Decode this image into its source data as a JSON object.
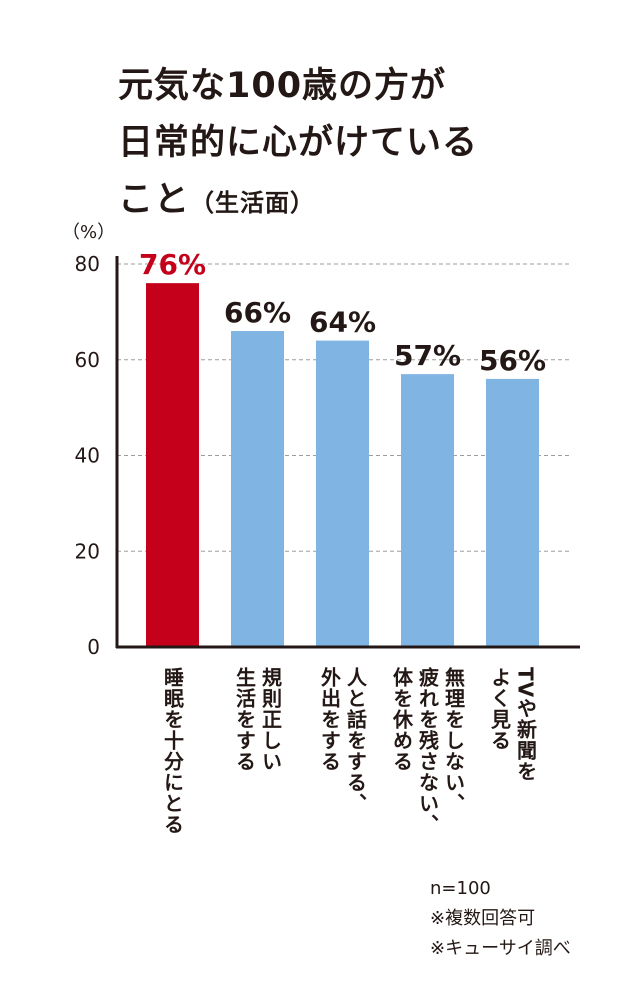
{
  "title": {
    "line1": "元気な100歳の方が",
    "line2": "日常的に心がけている",
    "line3": "こと",
    "sub": "（生活面）"
  },
  "colors": {
    "highlight": "#c4001a",
    "bar": "#7fb4e3",
    "text": "#231815",
    "axis": "#231815",
    "grid": "#9e9e9e"
  },
  "chart_data": {
    "type": "bar",
    "unit": "（%）",
    "categories": [
      "睡眠を十分にとる",
      "規則正しい生活をする",
      "人と話をする、外出をする",
      "無理をしない、疲れを残さない、体を休める",
      "TVや新聞をよく見る"
    ],
    "category_lines": [
      [
        "睡眠を十分にとる"
      ],
      [
        "規則正しい",
        "生活をする"
      ],
      [
        "人と話をする、",
        "外出をする"
      ],
      [
        "無理をしない、",
        "疲れを残さない、",
        "体を休める"
      ],
      [
        "TVや新聞を",
        "よく見る"
      ]
    ],
    "values": [
      76,
      66,
      64,
      57,
      56
    ],
    "labels": [
      "76%",
      "66%",
      "64%",
      "57%",
      "56%"
    ],
    "highlight_index": 0,
    "yticks": [
      0,
      20,
      40,
      60,
      80
    ],
    "ylim": [
      0,
      80
    ],
    "grid": true
  },
  "notes": [
    "n=100",
    "※複数回答可",
    "※キューサイ調べ"
  ]
}
